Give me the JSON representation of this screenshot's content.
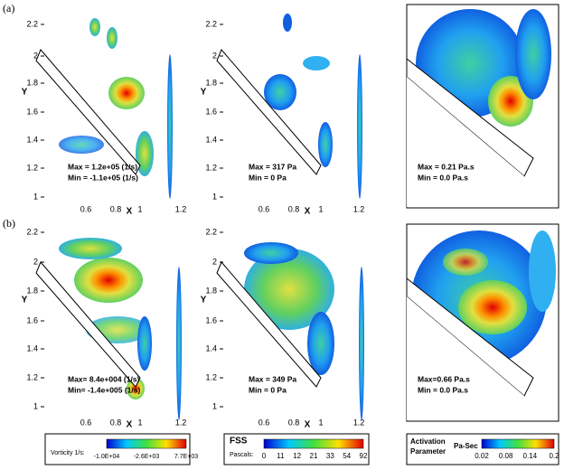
{
  "rows": [
    {
      "label": "(a)"
    },
    {
      "label": "(b)"
    }
  ],
  "axes": {
    "x_label": "X",
    "y_label": "Y",
    "xticks": [
      "0.6",
      "0.8",
      "1",
      "1.2"
    ],
    "yticks": [
      "2.2",
      "2",
      "1.8",
      "1.6",
      "1.4",
      "1.2",
      "1"
    ]
  },
  "panels": [
    {
      "annotation": [
        "Max = 1.2e+05 (1/s)",
        "Min = -1.1e+05 (1/s)"
      ]
    },
    {
      "annotation": [
        "Max = 317 Pa",
        "Min = 0 Pa"
      ]
    },
    {
      "annotation": [
        "Max = 0.21 Pa.s",
        "Min = 0.0 Pa.s"
      ]
    },
    {
      "annotation": [
        "Max= 8.4e+004 (1/s)",
        "Min= -1.4e+005 (1/s)"
      ]
    },
    {
      "annotation": [
        "Max = 349 Pa",
        "Min = 0 Pa"
      ]
    },
    {
      "annotation": [
        "Max=0.66 Pa.s",
        "Min = 0.0 Pa.s"
      ]
    }
  ],
  "colorbars": [
    {
      "title": "Vorticity 1/s:",
      "labels": [
        "-1.0E+04",
        "-2.6E+03",
        "7.7E+03"
      ]
    },
    {
      "title": "FSS",
      "subtitle": "Pascals:",
      "labels": [
        "0",
        "11",
        "12",
        "21",
        "33",
        "54",
        "92"
      ]
    },
    {
      "title": "Activation",
      "subtitle": "Parameter",
      "unit": "Pa-Sec",
      "labels": [
        "0.02",
        "0.08",
        "0.14",
        "0.2"
      ]
    }
  ]
}
